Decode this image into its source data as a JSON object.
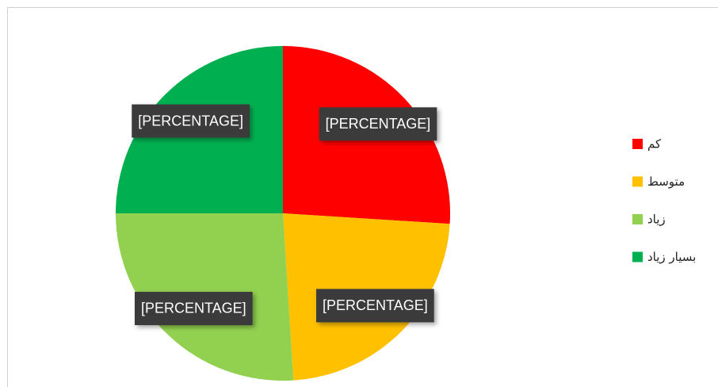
{
  "chart_data": {
    "type": "pie",
    "categories": [
      "کم",
      "متوسط",
      "زیاد",
      "بسیار زیاد"
    ],
    "values": [
      26,
      23,
      26,
      25
    ],
    "value_labels": [
      "[PERCENTAGE]",
      "[PERCENTAGE]",
      "[PERCENTAGE]",
      "[PERCENTAGE]"
    ],
    "colors": [
      "#ff0000",
      "#ffc000",
      "#92d050",
      "#00b050"
    ],
    "legend": "right"
  }
}
